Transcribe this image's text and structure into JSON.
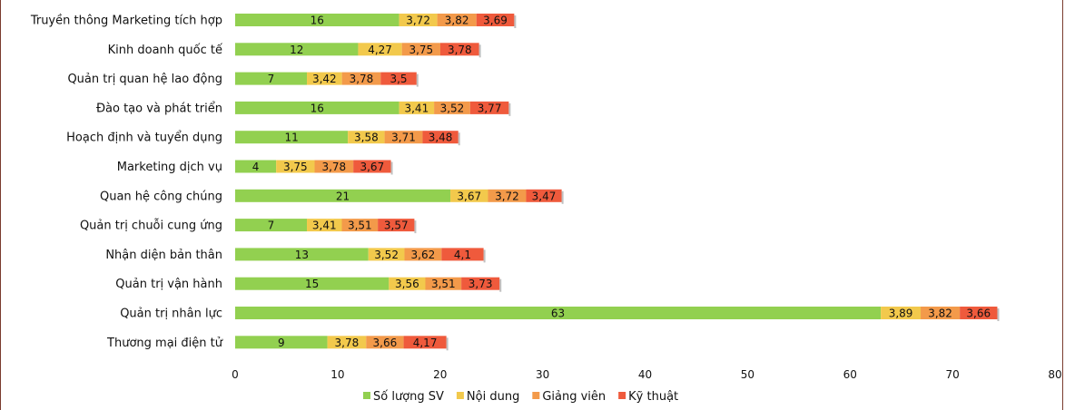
{
  "chart_data": {
    "type": "bar",
    "orientation": "horizontal",
    "stacked": true,
    "categories": [
      "Truyền thông Marketing tích hợp",
      "Kinh doanh quốc tế",
      "Quản trị quan hệ lao động",
      "Đào tạo và phát triển",
      "Hoạch định và tuyển dụng",
      "Marketing dịch vụ",
      "Quan hệ công chúng",
      "Quản trị chuỗi cung ứng",
      "Nhận diện bản thân",
      "Quản trị vận hành",
      "Quản trị nhân lực",
      "Thương mại điện tử"
    ],
    "series": [
      {
        "name": "Số lượng SV",
        "color": "#92d050",
        "values": [
          16,
          12,
          7,
          16,
          11,
          4,
          21,
          7,
          13,
          15,
          63,
          9
        ],
        "labels": [
          "16",
          "12",
          "7",
          "16",
          "11",
          "4",
          "21",
          "7",
          "13",
          "15",
          "63",
          "9"
        ]
      },
      {
        "name": "Nội dung",
        "color": "#f2c94c",
        "values": [
          3.72,
          4.27,
          3.42,
          3.41,
          3.58,
          3.75,
          3.67,
          3.41,
          3.52,
          3.56,
          3.89,
          3.78
        ],
        "labels": [
          "3,72",
          "4,27",
          "3,42",
          "3,41",
          "3,58",
          "3,75",
          "3,67",
          "3,41",
          "3,52",
          "3,56",
          "3,89",
          "3,78"
        ]
      },
      {
        "name": "Giảng viên",
        "color": "#f39a4a",
        "values": [
          3.82,
          3.75,
          3.78,
          3.52,
          3.71,
          3.78,
          3.72,
          3.51,
          3.62,
          3.51,
          3.82,
          3.66
        ],
        "labels": [
          "3,82",
          "3,75",
          "3,78",
          "3,52",
          "3,71",
          "3,78",
          "3,72",
          "3,51",
          "3,62",
          "3,51",
          "3,82",
          "3,66"
        ]
      },
      {
        "name": "Kỹ thuật",
        "color": "#ef5a3c",
        "values": [
          3.69,
          3.78,
          3.5,
          3.77,
          3.48,
          3.67,
          3.47,
          3.57,
          4.1,
          3.73,
          3.66,
          4.17
        ],
        "labels": [
          "3,69",
          "3,78",
          "3,5",
          "3,77",
          "3,48",
          "3,67",
          "3,47",
          "3,57",
          "4,1",
          "3,73",
          "3,66",
          "4,17"
        ]
      }
    ],
    "xlim": [
      0,
      80
    ],
    "xticks": [
      0,
      10,
      20,
      30,
      40,
      50,
      60,
      70,
      80
    ],
    "grid": false,
    "legend_position": "bottom"
  }
}
